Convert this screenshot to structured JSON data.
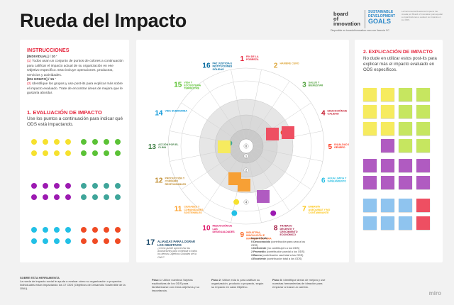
{
  "title": "Rueda del Impacto",
  "logos": {
    "board_line1": "board",
    "board_line2": "of",
    "board_line3": "innovation",
    "sdg_line1": "SUSTAINABLE",
    "sdg_line2": "DEVELOPMENT",
    "sdg_goals": "GOALS",
    "caption": "Disponible en boardofinnovation.com con licencia CC"
  },
  "top_note": "La herramienta Rueda del Impacto fue creada por Board of Innovation para ayudar a organizaciones a evaluar su impacto en los ODS.",
  "instructions": {
    "heading": "INSTRUCCIONES",
    "individual_label": "[INDIVIDUAL] / 10 '",
    "individual_text_prefix": "(1)",
    "individual_text": "Todos usan un conjunto de puntos de colores a continuación para calificar el impacto actual de su organización en ese Objetivo específico. Esto incluye operaciones, productos, servicios y actividades.",
    "group_label": "[EN GRUPO] / 15 '",
    "group_text_prefix": "(2)",
    "group_text": "Identifique los grupos y use post-its para explicar más sobre el impacto evaluado. Trate de encontrar áreas de mejora que le gustaría abordar."
  },
  "eval": {
    "heading": "1. EVALUACIÓN DE IMPACTO",
    "text": "Use los puntos a continuación para indicar qué ODS está impactando."
  },
  "dot_colors": {
    "yellow": "#f6e12e",
    "green": "#5bc236",
    "purple": "#9c1ab1",
    "teal": "#3fa59a",
    "cyan": "#22c0e6",
    "orange_red": "#f04b24"
  },
  "explain": {
    "heading": "2. EXPLICACIÓN DE IMPACTO",
    "text": "No dude en utilizar estos post-its para explicar más el impacto evaluado en ODS específicos."
  },
  "sdgs": [
    {
      "num": "1",
      "label": "FIN DE LA POBREZA",
      "color": "#e5243b"
    },
    {
      "num": "2",
      "label": "HAMBRE CERO",
      "color": "#dda63a"
    },
    {
      "num": "3",
      "label": "SALUD Y BIENESTAR",
      "color": "#4c9f38"
    },
    {
      "num": "4",
      "label": "EDUCACIÓN DE CALIDAD",
      "color": "#c5192d"
    },
    {
      "num": "5",
      "label": "IGUALDAD DE GÉNERO",
      "color": "#ff3a21"
    },
    {
      "num": "6",
      "label": "AGUA LIMPIA Y SANEAMIENTO",
      "color": "#26bde2"
    },
    {
      "num": "7",
      "label": "ENERGÍA ASEQUIBLE Y NO CONTAMINANTE",
      "color": "#fcc30b"
    },
    {
      "num": "8",
      "label": "TRABAJO DECENTE Y CRECIMIENTO ECONÓMICO",
      "color": "#a21942"
    },
    {
      "num": "9",
      "label": "INDUSTRIA, INNOVACIÓN E INFRAESTRUCTURA",
      "color": "#fd6925"
    },
    {
      "num": "10",
      "label": "REDUCCIÓN DE LAS DESIGUALDADES",
      "color": "#dd1367"
    },
    {
      "num": "11",
      "label": "CIUDADES Y COMUNIDADES SOSTENIBLES",
      "color": "#fd9d24"
    },
    {
      "num": "12",
      "label": "PRODUCCIÓN Y CONSUMO RESPONSABLES",
      "color": "#bf8b2e"
    },
    {
      "num": "13",
      "label": "ACCIÓN POR EL CLIMA",
      "color": "#3f7e44"
    },
    {
      "num": "14",
      "label": "VIDA SUBMARINA",
      "color": "#0a97d9"
    },
    {
      "num": "15",
      "label": "VIDA Y ECOSISTEMA TERRESTRE",
      "color": "#56c02b"
    },
    {
      "num": "16",
      "label": "PAZ JUSTICIA E INSTITUCIONES SÓLIDAS",
      "color": "#00689d"
    }
  ],
  "sdg17": {
    "num": "17",
    "label": "ALIANZAS PARA LOGRAR LOS OBJETIVOS",
    "sub": "¿Cómo puede aprovechar las asociaciones para contribuir a todos los demás Objetivos Globales de la ONU?",
    "color": "#19486a"
  },
  "scale_ticks": [
    "0",
    "1",
    "2",
    "3",
    "4"
  ],
  "impact_scale": {
    "heading": "Impact Scale",
    "items": [
      {
        "num": "0",
        "bold": "Desconocido",
        "text": "(contribución para cara a los ODS)"
      },
      {
        "num": "1",
        "bold": "Deficiente",
        "text": "(no contribuyen a los ODS)"
      },
      {
        "num": "2",
        "bold": "Promedio",
        "text": "(contribución parcial a los ODS)"
      },
      {
        "num": "3",
        "bold": "Bueno",
        "text": "(contribución casi total a los ODS)"
      },
      {
        "num": "4",
        "bold": "Excelente",
        "text": "(contribución total a los ODS)"
      }
    ]
  },
  "footer": {
    "about_heading": "SOBRE ESTA HERRAMIENTA",
    "about_text": "La rueda de impacto social le ayuda a evaluar cómo su organización o proyectos individuales están impactando los 17 ODS (Objetivos de Desarrollo Sostenible de la ONU).",
    "step1_label": "Paso 1:",
    "step1_text": "Utilice nuestras Tarjetas explicativas de los ODS para familiarizarse con estos objetivos y su importancia.",
    "step2_label": "Paso 2:",
    "step2_text": "Utilice esta lo para calificar su organización, producto o proyecto, según su impacto en cada Objetivo.",
    "step3_label": "Paso 3:",
    "step3_text": "Identifique áreas de mejora y use nuestras herramientas de ideación para empezar a trazar un cambio."
  },
  "miro": "miro"
}
